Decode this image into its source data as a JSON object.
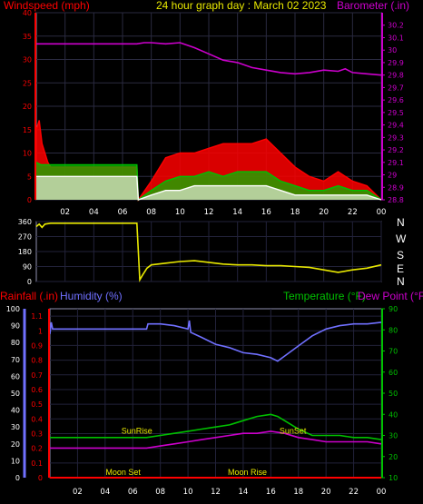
{
  "chart_data": [
    {
      "type": "line",
      "title": "24 hour graph day : March 02 2023",
      "ylabel": "Windspeed (mph)",
      "y2label": "Barometer (.in)",
      "ylim": [
        0,
        40
      ],
      "y2lim": [
        28.8,
        30.3
      ],
      "yticks": [
        "0",
        "5",
        "10",
        "15",
        "20",
        "25",
        "30",
        "35",
        "40"
      ],
      "y2ticks": [
        "28.8",
        "28.9",
        "29",
        "29.1",
        "29.2",
        "29.3",
        "29.4",
        "29.5",
        "29.6",
        "29.7",
        "29.8",
        "29.9",
        "30",
        "30.1",
        "30.2"
      ],
      "xlim": [
        0,
        24
      ],
      "xticks": [
        "02",
        "04",
        "06",
        "08",
        "10",
        "12",
        "14",
        "16",
        "18",
        "20",
        "22",
        "00"
      ],
      "grid": true,
      "colors": {
        "gust": "#ff0000",
        "speed": "#00c000",
        "avg": "#ffffff",
        "baro": "#cc00cc",
        "axis_left": "#ff0000",
        "axis_right": "#cc00cc"
      },
      "series": [
        {
          "key": "baro",
          "axis": "right",
          "x": [
            0,
            1,
            2,
            3,
            4,
            5,
            6,
            7,
            7.5,
            8,
            9,
            10,
            10.5,
            11,
            12,
            13,
            14,
            15,
            16,
            17,
            18,
            19,
            20,
            21,
            21.5,
            22,
            23,
            24
          ],
          "values": [
            30.05,
            30.05,
            30.05,
            30.05,
            30.05,
            30.05,
            30.05,
            30.05,
            30.06,
            30.06,
            30.05,
            30.06,
            30.04,
            30.02,
            29.97,
            29.92,
            29.9,
            29.86,
            29.84,
            29.82,
            29.81,
            29.82,
            29.84,
            29.83,
            29.85,
            29.82,
            29.81,
            29.8
          ]
        },
        {
          "key": "gust",
          "axis": "left",
          "x": [
            0,
            0.2,
            0.4,
            0.6,
            0.8,
            1,
            7,
            7.1,
            8,
            9,
            10,
            11,
            12,
            13,
            14,
            15,
            16,
            17,
            18,
            19,
            20,
            21,
            22,
            23,
            24
          ],
          "values": [
            15,
            17,
            12,
            10,
            8,
            7,
            7,
            0,
            4,
            9,
            10,
            10,
            11,
            12,
            12,
            12,
            13,
            10,
            7,
            5,
            4,
            6,
            4,
            3,
            0
          ]
        },
        {
          "key": "speed",
          "axis": "left",
          "x": [
            0,
            0.3,
            1,
            7,
            7.1,
            8,
            9,
            10,
            11,
            12,
            13,
            14,
            15,
            16,
            17,
            18,
            19,
            20,
            21,
            22,
            23,
            24
          ],
          "values": [
            8,
            7.5,
            7.5,
            7.5,
            0,
            2,
            4,
            5,
            5,
            6,
            5,
            6,
            6,
            6,
            4,
            3,
            2,
            2,
            3,
            2,
            2,
            0
          ]
        },
        {
          "key": "avg",
          "axis": "left",
          "x": [
            0,
            0.3,
            1,
            7,
            7.1,
            8,
            9,
            10,
            11,
            12,
            13,
            14,
            15,
            16,
            17,
            18,
            19,
            20,
            21,
            22,
            23,
            24
          ],
          "values": [
            5,
            5,
            5,
            5,
            0,
            1,
            2,
            2,
            3,
            3,
            3,
            3,
            3,
            3,
            2,
            1,
            1,
            1,
            1,
            1,
            1,
            0
          ]
        }
      ]
    },
    {
      "type": "line",
      "ylabel": "",
      "ylim": [
        0,
        360
      ],
      "yticks": [
        "0",
        "90",
        "180",
        "270",
        "360"
      ],
      "compass": [
        "N",
        "W",
        "S",
        "E",
        "N"
      ],
      "xlim": [
        0,
        24
      ],
      "colors": {
        "dir": "#e8e800"
      },
      "series": [
        {
          "key": "dir",
          "x": [
            0,
            0.2,
            0.4,
            0.6,
            1,
            2,
            3,
            4,
            5,
            6,
            7,
            7.2,
            7.4,
            7.7,
            8,
            9,
            10,
            11,
            12,
            13,
            14,
            15,
            16,
            17,
            18,
            19,
            20,
            21,
            22,
            23,
            24
          ],
          "values": [
            330,
            345,
            325,
            345,
            350,
            350,
            350,
            350,
            350,
            350,
            350,
            10,
            40,
            80,
            100,
            110,
            120,
            125,
            115,
            105,
            100,
            100,
            95,
            95,
            90,
            85,
            70,
            55,
            70,
            80,
            100
          ]
        }
      ]
    },
    {
      "type": "line",
      "ylabel_left": "Rainfall (.in)",
      "ylabel_left2": "Humidity (%)",
      "ylabel_right": "Temperature (°F)",
      "ylabel_right2": "Dew Point (°F)",
      "ylim_rain": [
        0,
        1.15
      ],
      "ylim_hum": [
        0,
        100
      ],
      "ylim_temp": [
        10,
        90
      ],
      "yticks_rain": [
        "0",
        "0.1",
        "0.2",
        "0.3",
        "0.4",
        "0.5",
        "0.6",
        "0.7",
        "0.8",
        "0.9",
        "1",
        "1.1"
      ],
      "yticks_hum": [
        "0",
        "10",
        "20",
        "30",
        "40",
        "50",
        "60",
        "70",
        "80",
        "90",
        "100"
      ],
      "yticks_temp": [
        "10",
        "20",
        "30",
        "40",
        "50",
        "60",
        "70",
        "80",
        "90"
      ],
      "xlim": [
        0,
        24
      ],
      "xticks": [
        "02",
        "04",
        "06",
        "08",
        "10",
        "12",
        "14",
        "16",
        "18",
        "20",
        "22",
        "00"
      ],
      "annotations": [
        {
          "text": "SunRise",
          "x": 6.3,
          "y": 0.28,
          "color": "#e8e800"
        },
        {
          "text": "SunSet",
          "x": 17.6,
          "y": 0.28,
          "color": "#e8e800"
        },
        {
          "text": "Moon Set",
          "x": 5.3,
          "y": 0.0,
          "color": "#e8e800"
        },
        {
          "text": "Moon Rise",
          "x": 14.3,
          "y": 0.0,
          "color": "#e8e800"
        }
      ],
      "colors": {
        "hum": "#7070ff",
        "temp": "#00c000",
        "dew": "#cc00cc",
        "rain": "#ff0000",
        "axis_rain": "#ff0000",
        "axis_hum": "#7070ff",
        "axis_temp": "#00c000"
      },
      "series": [
        {
          "key": "hum",
          "axis": "hum",
          "x": [
            0,
            0.1,
            0.2,
            1,
            2,
            3,
            4,
            5,
            6,
            7,
            7.1,
            8,
            9,
            10,
            10.1,
            10.2,
            11,
            12,
            13,
            14,
            15,
            16,
            16.5,
            17,
            18,
            19,
            20,
            21,
            22,
            23,
            24
          ],
          "values": [
            85,
            92,
            88,
            88,
            88,
            88,
            88,
            88,
            88,
            88,
            91,
            91,
            90,
            88,
            93,
            86,
            83,
            79,
            77,
            74,
            73,
            71,
            69,
            72,
            78,
            84,
            88,
            90,
            91,
            91,
            92
          ]
        },
        {
          "key": "temp",
          "axis": "temp",
          "x": [
            0,
            1,
            2,
            3,
            4,
            5,
            6,
            7,
            8,
            9,
            10,
            11,
            12,
            13,
            14,
            15,
            16,
            16.5,
            17,
            18,
            19,
            20,
            21,
            22,
            23,
            24
          ],
          "values": [
            29,
            29,
            29,
            29,
            29,
            29,
            29,
            29,
            30,
            31,
            32,
            33,
            34,
            35,
            37,
            39,
            40,
            39,
            37,
            33,
            30,
            30,
            30,
            29,
            29,
            28
          ]
        },
        {
          "key": "dew",
          "axis": "temp",
          "x": [
            0,
            1,
            2,
            3,
            4,
            5,
            6,
            7,
            8,
            9,
            10,
            11,
            12,
            13,
            14,
            15,
            16,
            17,
            18,
            19,
            20,
            21,
            22,
            23,
            24
          ],
          "values": [
            24,
            24,
            24,
            24,
            24,
            24,
            24,
            24,
            25,
            26,
            27,
            28,
            29,
            30,
            31,
            31,
            32,
            31,
            29,
            28,
            27,
            27,
            27,
            27,
            26
          ]
        },
        {
          "key": "rain",
          "axis": "rain",
          "x": [
            0,
            24
          ],
          "values": [
            0,
            0
          ]
        }
      ]
    }
  ]
}
